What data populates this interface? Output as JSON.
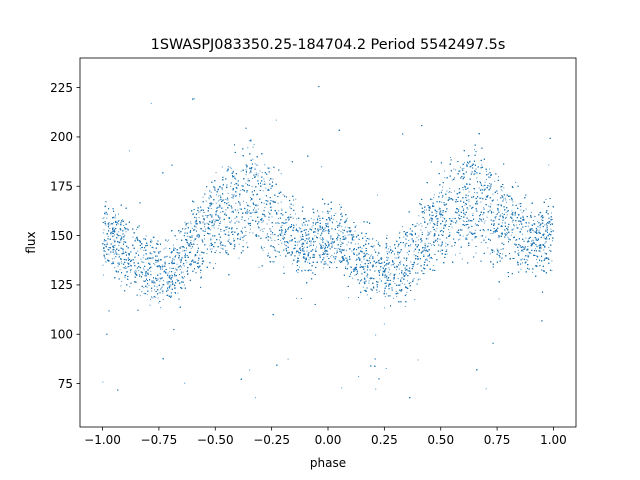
{
  "chart_data": {
    "type": "scatter",
    "title": "1SWASPJ083350.25-184704.2 Period 5542497.5s",
    "xlabel": "phase",
    "ylabel": "flux",
    "xlim": [
      -1.1,
      1.1
    ],
    "ylim": [
      53,
      240
    ],
    "xticks": [
      -1.0,
      -0.75,
      -0.5,
      -0.25,
      0.0,
      0.25,
      0.5,
      0.75,
      1.0
    ],
    "xtick_labels": [
      "−1.00",
      "−0.75",
      "−0.50",
      "−0.25",
      "0.00",
      "0.25",
      "0.50",
      "0.75",
      "1.00"
    ],
    "yticks": [
      75,
      100,
      125,
      150,
      175,
      200,
      225
    ],
    "ytick_labels": [
      "75",
      "100",
      "125",
      "150",
      "175",
      "200",
      "225"
    ],
    "grid": false,
    "marker_color": "#1f77b4",
    "profile": {
      "phase": [
        0.0,
        0.05,
        0.1,
        0.15,
        0.2,
        0.25,
        0.3,
        0.35,
        0.4,
        0.45,
        0.5,
        0.55,
        0.6,
        0.65,
        0.7,
        0.75,
        0.8,
        0.85,
        0.9,
        0.95,
        1.0
      ],
      "mean_flux": [
        150,
        147,
        143,
        137,
        134,
        132,
        133,
        137,
        145,
        152,
        157,
        162,
        166,
        170,
        166,
        160,
        155,
        150,
        146,
        148,
        150
      ],
      "spread": [
        12,
        12,
        13,
        13,
        12,
        12,
        12,
        13,
        14,
        15,
        16,
        17,
        19,
        21,
        19,
        16,
        14,
        13,
        12,
        12,
        12
      ]
    },
    "n_points": 14000,
    "outlier_fraction": 0.02
  }
}
